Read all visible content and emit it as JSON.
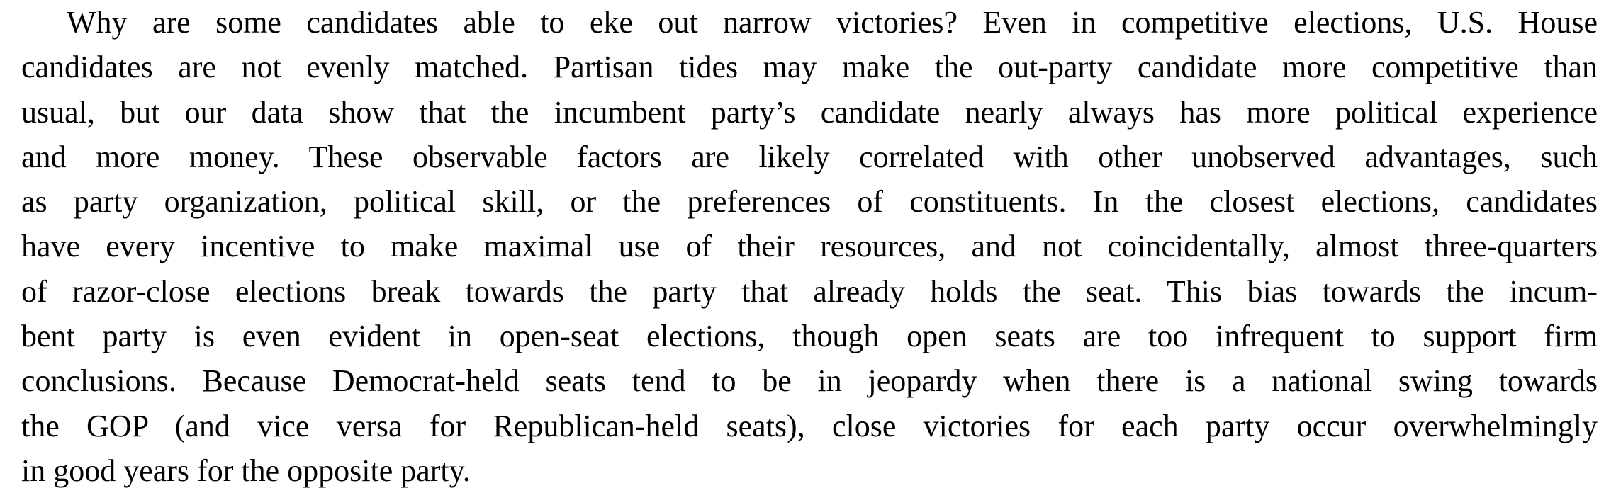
{
  "paragraph": {
    "lines": [
      "Why are some candidates able to eke out narrow victories? Even in competitive elections, U.S. House",
      "candidates are not evenly matched. Partisan tides may make the out-party candidate more competitive than",
      "usual, but our data show that the incumbent party’s candidate nearly always has more political experience",
      "and more money. These observable factors are likely correlated with other unobserved advantages, such",
      "as party organization, political skill, or the preferences of constituents. In the closest elections, candidates",
      "have every incentive to make maximal use of their resources, and not coincidentally, almost three-quarters",
      "of razor-close elections break towards the party that already holds the seat. This bias towards the incum-",
      "bent party is even evident in open-seat elections, though open seats are too infrequent to support firm",
      "conclusions. Because Democrat-held seats tend to be in jeopardy when there is a national swing towards",
      "the GOP (and vice versa for Republican-held seats), close victories for each party occur overwhelmingly",
      "in good years for the opposite party."
    ]
  }
}
